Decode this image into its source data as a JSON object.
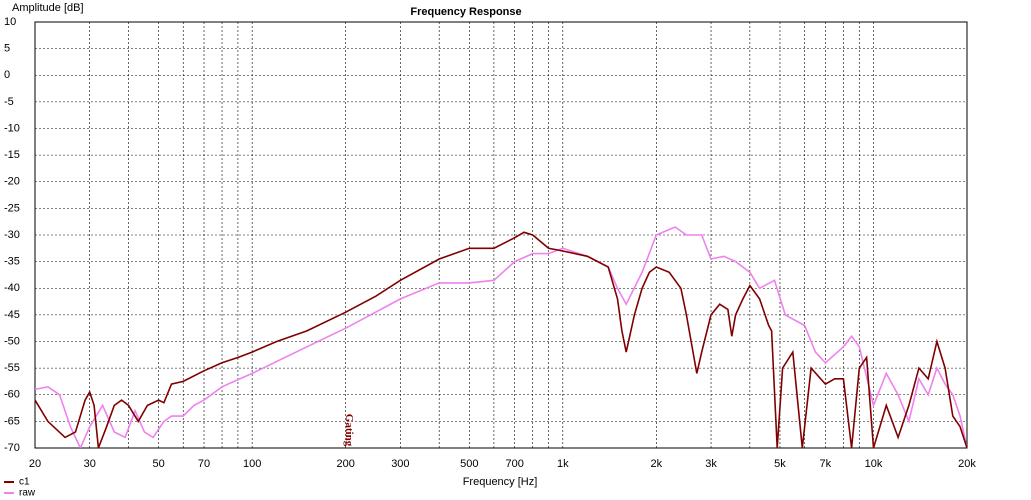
{
  "chart_data": {
    "type": "line",
    "title": "Frequency Response",
    "ylabel": "Amplitude [dB]",
    "xlabel": "Frequency [Hz]",
    "xscale": "log",
    "grid": true,
    "legend": "bottom-left",
    "xlim": [
      20,
      20000
    ],
    "ylim": [
      -70,
      10
    ],
    "yticks": [
      10,
      5,
      0,
      -5,
      -10,
      -15,
      -20,
      -25,
      -30,
      -35,
      -40,
      -45,
      -50,
      -55,
      -60,
      -65,
      -70
    ],
    "xticks": [
      20,
      30,
      50,
      70,
      100,
      200,
      300,
      500,
      700,
      {
        "value": 1000,
        "label": "1k"
      },
      {
        "value": 2000,
        "label": "2k"
      },
      {
        "value": 3000,
        "label": "3k"
      },
      {
        "value": 5000,
        "label": "5k"
      },
      {
        "value": 7000,
        "label": "7k"
      },
      {
        "value": 10000,
        "label": "10k"
      },
      {
        "value": 20000,
        "label": "20k"
      }
    ],
    "xminor": [
      40,
      60,
      80,
      90,
      400,
      600,
      800,
      900,
      4000,
      6000,
      8000,
      9000
    ],
    "annotations": [
      {
        "text": "Gating",
        "x": 200
      }
    ],
    "series": [
      {
        "name": "c1",
        "color": "#800000",
        "x": [
          20,
          22,
          25,
          27,
          29,
          30,
          31,
          32,
          34,
          36,
          38,
          40,
          43,
          46,
          50,
          52,
          55,
          60,
          70,
          80,
          90,
          100,
          120,
          150,
          200,
          250,
          300,
          400,
          500,
          600,
          700,
          750,
          800,
          900,
          1000,
          1200,
          1400,
          1500,
          1550,
          1600,
          1700,
          1800,
          1900,
          2000,
          2200,
          2400,
          2500,
          2700,
          2800,
          3000,
          3200,
          3400,
          3500,
          3600,
          3800,
          4000,
          4300,
          4600,
          4700,
          4900,
          5100,
          5500,
          5900,
          6300,
          7000,
          7500,
          8000,
          8500,
          9000,
          9500,
          10000,
          11000,
          12000,
          13000,
          14000,
          15000,
          16000,
          17000,
          18000,
          19000,
          20000
        ],
        "values": [
          -61,
          -65,
          -68,
          -67,
          -61,
          -59.5,
          -62,
          -70,
          -66,
          -62,
          -61,
          -62,
          -65,
          -62,
          -61,
          -61.5,
          -58,
          -57.5,
          -55.5,
          -54,
          -53,
          -52,
          -50,
          -48,
          -44.5,
          -41.5,
          -38.5,
          -34.5,
          -32.5,
          -32.5,
          -30.5,
          -29.5,
          -30,
          -32.5,
          -33,
          -34,
          -36,
          -42,
          -48,
          -52,
          -45,
          -40,
          -37,
          -36,
          -37,
          -40,
          -45,
          -56,
          -52,
          -45,
          -43,
          -44,
          -49,
          -45,
          -42,
          -39.5,
          -42,
          -47,
          -48,
          -70,
          -55,
          -52,
          -70,
          -55,
          -58,
          -57,
          -57,
          -70,
          -55,
          -53,
          -70,
          -62,
          -68,
          -62,
          -55,
          -57,
          -50,
          -55,
          -64,
          -66,
          -70
        ]
      },
      {
        "name": "raw",
        "color": "#ee82ee",
        "x": [
          20,
          22,
          24,
          26,
          28,
          30,
          33,
          36,
          39,
          42,
          45,
          48,
          52,
          55,
          60,
          65,
          70,
          80,
          100,
          150,
          200,
          300,
          400,
          500,
          600,
          700,
          800,
          900,
          1000,
          1200,
          1400,
          1500,
          1600,
          1800,
          2000,
          2300,
          2500,
          2800,
          3000,
          3300,
          3600,
          4000,
          4300,
          4800,
          5200,
          6000,
          6500,
          7000,
          8000,
          8500,
          9000,
          10000,
          11000,
          12000,
          13000,
          14000,
          15000,
          16000,
          17000,
          18000,
          19000,
          20000
        ],
        "values": [
          -59,
          -58.5,
          -60,
          -66,
          -70,
          -66,
          -62,
          -67,
          -68,
          -63,
          -67,
          -68,
          -65,
          -64,
          -64,
          -62,
          -61,
          -58.5,
          -56,
          -51,
          -47.5,
          -42,
          -39,
          -39,
          -38.5,
          -35,
          -33.5,
          -33.5,
          -32.5,
          -34,
          -36,
          -40,
          -43,
          -37,
          -30,
          -28.5,
          -30,
          -30,
          -34.5,
          -34,
          -35,
          -37,
          -40,
          -38.5,
          -45,
          -47,
          -52,
          -54,
          -51,
          -49,
          -51,
          -62,
          -56,
          -60,
          -65,
          -57,
          -60,
          -55,
          -58,
          -60,
          -64,
          -70
        ]
      }
    ]
  }
}
